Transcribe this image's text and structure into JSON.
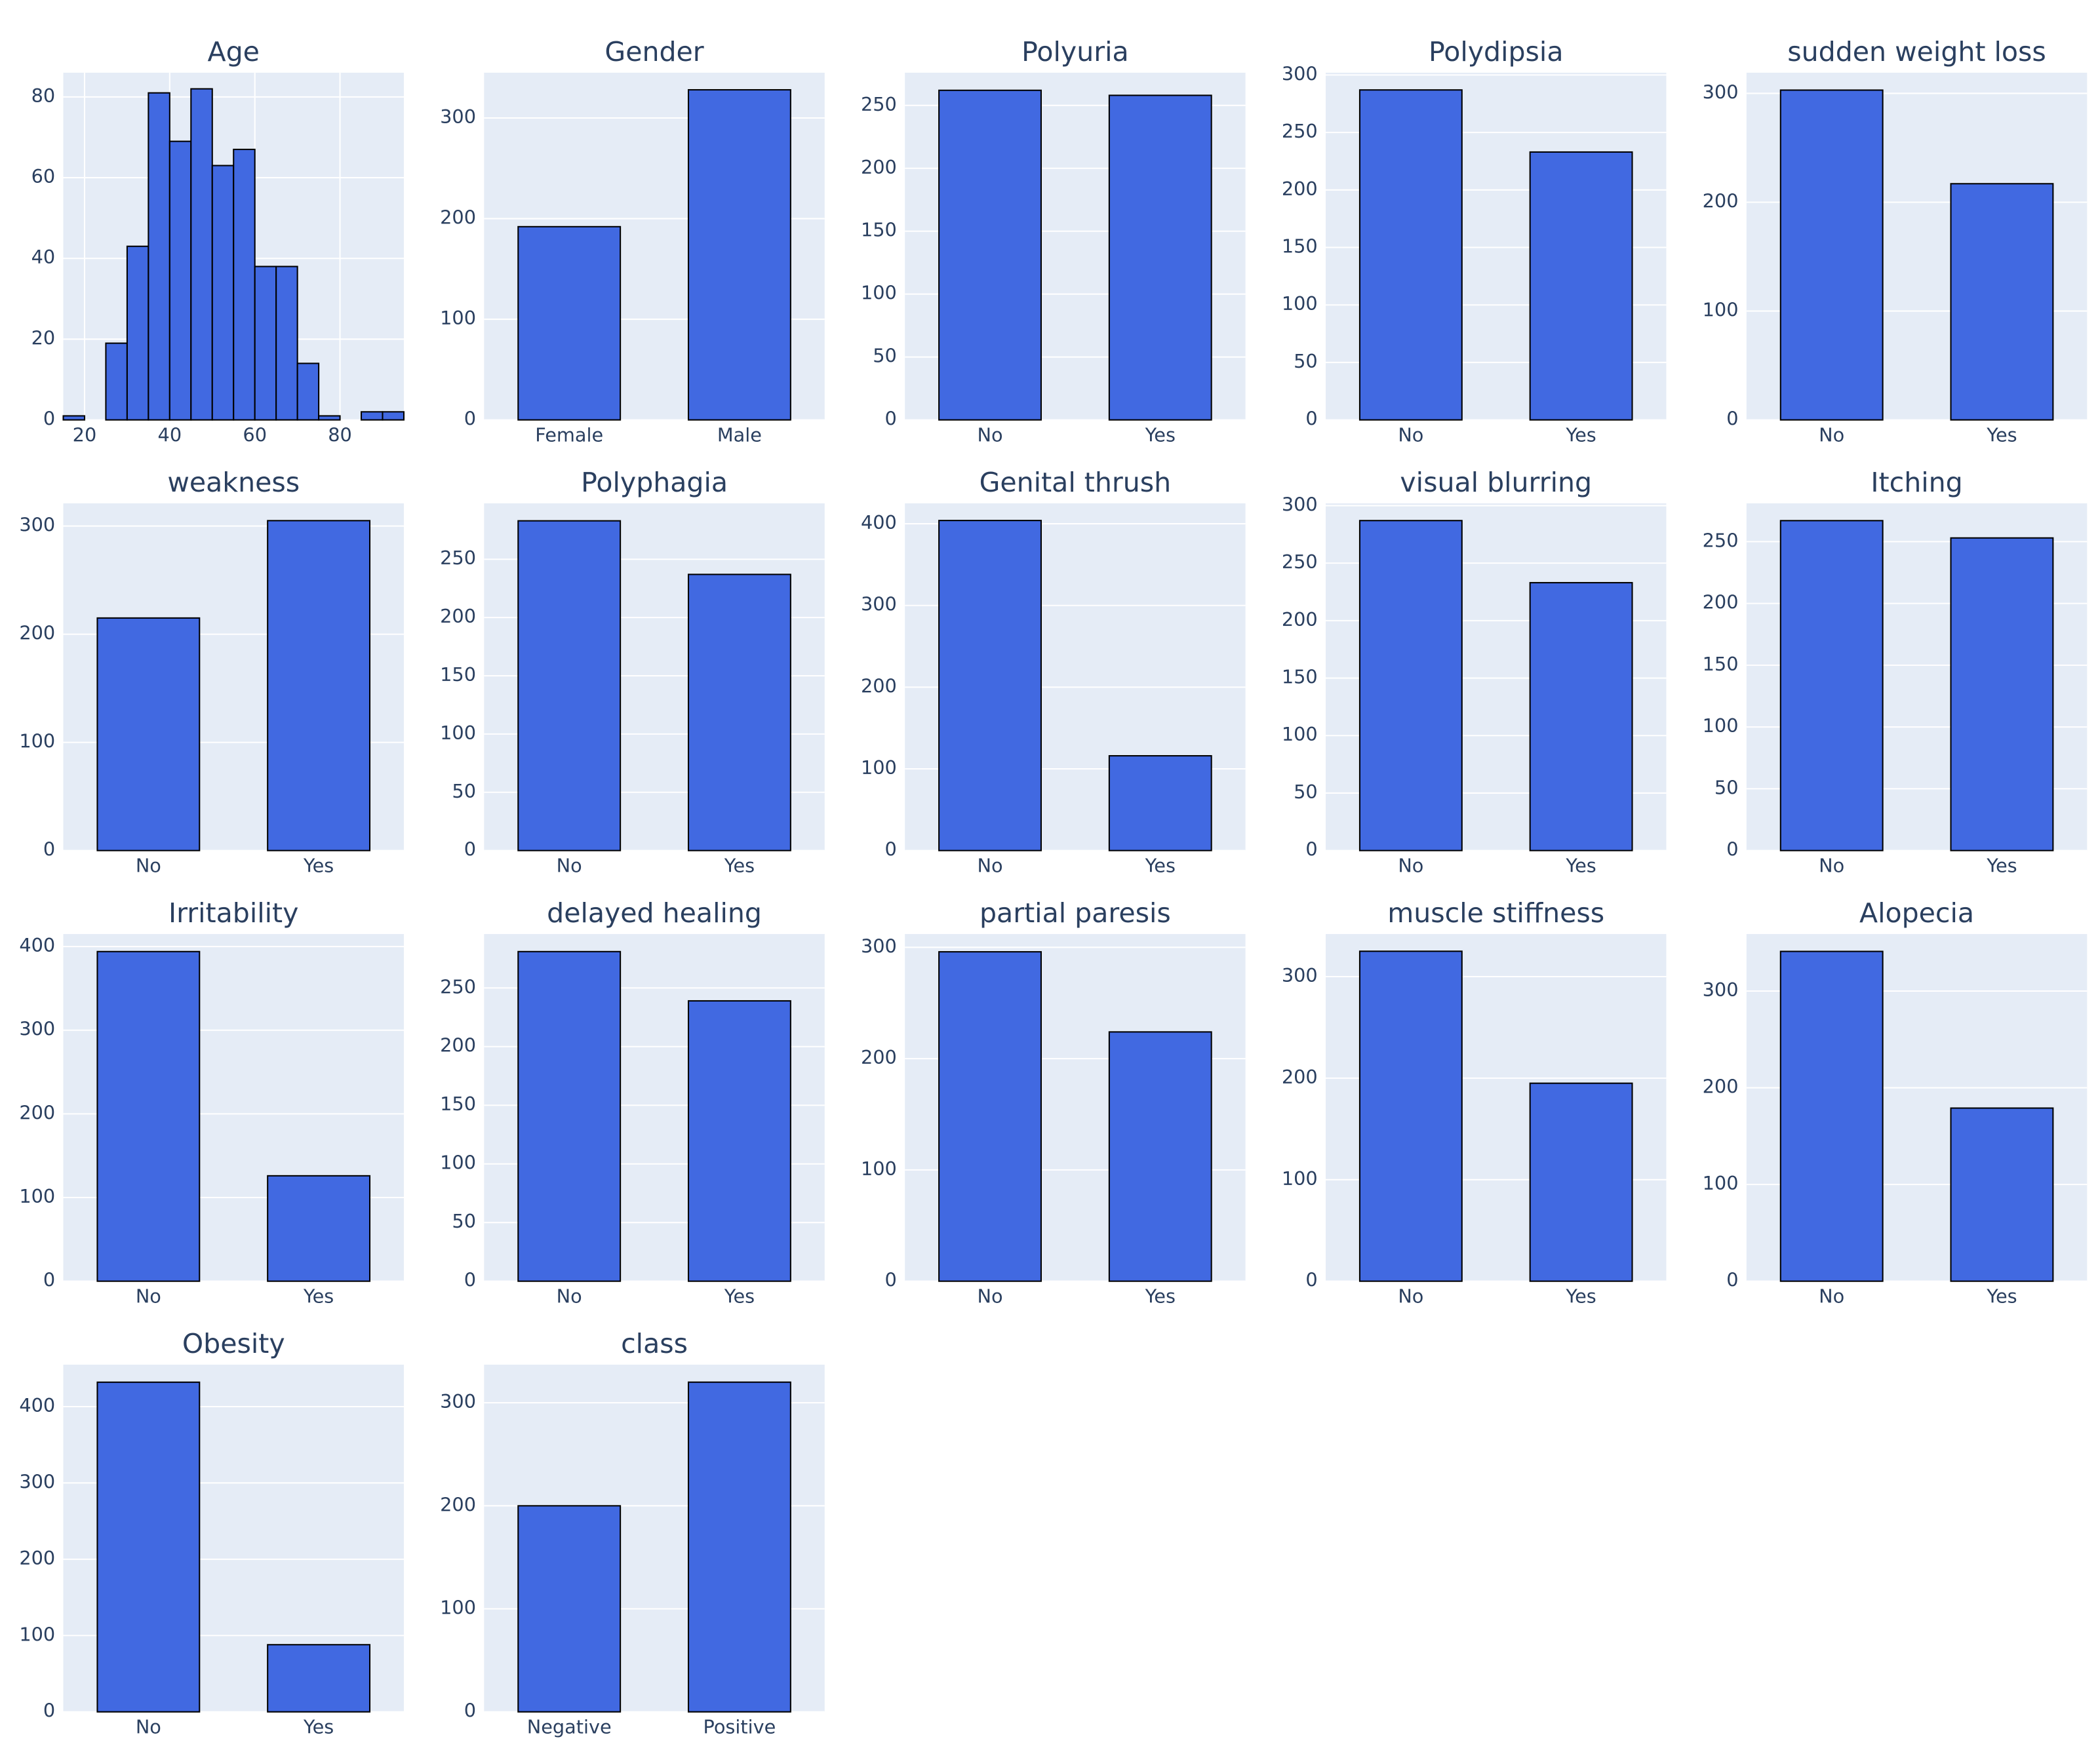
{
  "chart_data": [
    {
      "type": "histogram",
      "title": "Age",
      "bins": [
        15,
        20,
        25,
        30,
        35,
        40,
        45,
        50,
        55,
        60,
        65,
        70,
        75,
        80,
        85,
        90,
        95
      ],
      "values": [
        1,
        0,
        19,
        43,
        81,
        69,
        82,
        63,
        67,
        38,
        38,
        14,
        1,
        0,
        2,
        2
      ],
      "xlim": [
        15,
        95
      ],
      "xticks": [
        20,
        40,
        60,
        80
      ],
      "ylim": [
        0,
        86
      ],
      "yticks": [
        0,
        20,
        40,
        60,
        80
      ],
      "color": "#4169e1",
      "grid": true
    },
    {
      "type": "bar",
      "title": "Gender",
      "categories": [
        "Female",
        "Male"
      ],
      "values": [
        192,
        328
      ],
      "ylim": [
        0,
        345
      ],
      "yticks": [
        0,
        100,
        200,
        300
      ],
      "color": "#4169e1",
      "grid": true
    },
    {
      "type": "bar",
      "title": "Polyuria",
      "categories": [
        "No",
        "Yes"
      ],
      "values": [
        262,
        258
      ],
      "ylim": [
        0,
        276
      ],
      "yticks": [
        0,
        50,
        100,
        150,
        200,
        250
      ],
      "color": "#4169e1",
      "grid": true
    },
    {
      "type": "bar",
      "title": "Polydipsia",
      "categories": [
        "No",
        "Yes"
      ],
      "values": [
        287,
        233
      ],
      "ylim": [
        0,
        302
      ],
      "yticks": [
        0,
        50,
        100,
        150,
        200,
        250,
        300
      ],
      "color": "#4169e1",
      "grid": true
    },
    {
      "type": "bar",
      "title": "sudden weight loss",
      "categories": [
        "No",
        "Yes"
      ],
      "values": [
        303,
        217
      ],
      "ylim": [
        0,
        319
      ],
      "yticks": [
        0,
        100,
        200,
        300
      ],
      "color": "#4169e1",
      "grid": true
    },
    {
      "type": "bar",
      "title": "weakness",
      "categories": [
        "No",
        "Yes"
      ],
      "values": [
        215,
        305
      ],
      "ylim": [
        0,
        321
      ],
      "yticks": [
        0,
        100,
        200,
        300
      ],
      "color": "#4169e1",
      "grid": true
    },
    {
      "type": "bar",
      "title": "Polyphagia",
      "categories": [
        "No",
        "Yes"
      ],
      "values": [
        283,
        237
      ],
      "ylim": [
        0,
        298
      ],
      "yticks": [
        0,
        50,
        100,
        150,
        200,
        250
      ],
      "color": "#4169e1",
      "grid": true
    },
    {
      "type": "bar",
      "title": "Genital thrush",
      "categories": [
        "No",
        "Yes"
      ],
      "values": [
        404,
        116
      ],
      "ylim": [
        0,
        425
      ],
      "yticks": [
        0,
        100,
        200,
        300,
        400
      ],
      "color": "#4169e1",
      "grid": true
    },
    {
      "type": "bar",
      "title": "visual blurring",
      "categories": [
        "No",
        "Yes"
      ],
      "values": [
        287,
        233
      ],
      "ylim": [
        0,
        302
      ],
      "yticks": [
        0,
        50,
        100,
        150,
        200,
        250,
        300
      ],
      "color": "#4169e1",
      "grid": true
    },
    {
      "type": "bar",
      "title": "Itching",
      "categories": [
        "No",
        "Yes"
      ],
      "values": [
        267,
        253
      ],
      "ylim": [
        0,
        281
      ],
      "yticks": [
        0,
        50,
        100,
        150,
        200,
        250
      ],
      "color": "#4169e1",
      "grid": true
    },
    {
      "type": "bar",
      "title": "Irritability",
      "categories": [
        "No",
        "Yes"
      ],
      "values": [
        394,
        126
      ],
      "ylim": [
        0,
        415
      ],
      "yticks": [
        0,
        100,
        200,
        300,
        400
      ],
      "color": "#4169e1",
      "grid": true
    },
    {
      "type": "bar",
      "title": "delayed healing",
      "categories": [
        "No",
        "Yes"
      ],
      "values": [
        281,
        239
      ],
      "ylim": [
        0,
        296
      ],
      "yticks": [
        0,
        50,
        100,
        150,
        200,
        250
      ],
      "color": "#4169e1",
      "grid": true
    },
    {
      "type": "bar",
      "title": "partial paresis",
      "categories": [
        "No",
        "Yes"
      ],
      "values": [
        296,
        224
      ],
      "ylim": [
        0,
        312
      ],
      "yticks": [
        0,
        100,
        200,
        300
      ],
      "color": "#4169e1",
      "grid": true
    },
    {
      "type": "bar",
      "title": "muscle stiffness",
      "categories": [
        "No",
        "Yes"
      ],
      "values": [
        325,
        195
      ],
      "ylim": [
        0,
        342
      ],
      "yticks": [
        0,
        100,
        200,
        300
      ],
      "color": "#4169e1",
      "grid": true
    },
    {
      "type": "bar",
      "title": "Alopecia",
      "categories": [
        "No",
        "Yes"
      ],
      "values": [
        341,
        179
      ],
      "ylim": [
        0,
        359
      ],
      "yticks": [
        0,
        100,
        200,
        300
      ],
      "color": "#4169e1",
      "grid": true
    },
    {
      "type": "bar",
      "title": "Obesity",
      "categories": [
        "No",
        "Yes"
      ],
      "values": [
        432,
        88
      ],
      "ylim": [
        0,
        455
      ],
      "yticks": [
        0,
        100,
        200,
        300,
        400
      ],
      "color": "#4169e1",
      "grid": true
    },
    {
      "type": "bar",
      "title": "class",
      "categories": [
        "Negative",
        "Positive"
      ],
      "values": [
        200,
        320
      ],
      "ylim": [
        0,
        337
      ],
      "yticks": [
        0,
        100,
        200,
        300
      ],
      "color": "#4169e1",
      "grid": true
    }
  ]
}
